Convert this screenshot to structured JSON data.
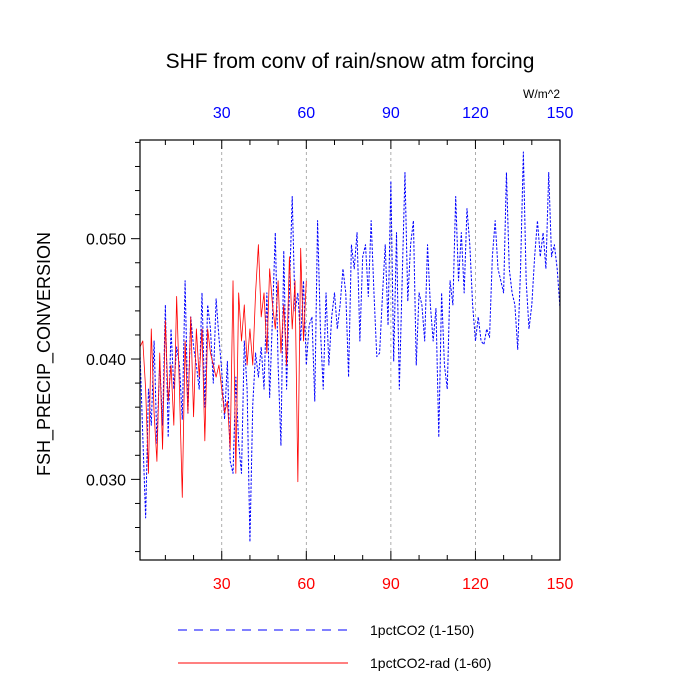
{
  "chart_data": {
    "type": "line",
    "title": "SHF from conv of rain/snow atm forcing",
    "ylabel": "FSH_PRECIP_CONVERSION",
    "units_label": "W/m^2",
    "xlim": [
      1,
      150
    ],
    "ylim": [
      0.0233,
      0.0582
    ],
    "x_ticks": [
      30,
      60,
      90,
      120,
      150
    ],
    "x_tick_labels": [
      "30",
      "60",
      "90",
      "120",
      "150"
    ],
    "y_ticks": [
      0.03,
      0.04,
      0.05
    ],
    "y_tick_labels": [
      "0.030",
      "0.040",
      "0.050"
    ],
    "grid": "vertical dashed at x ticks",
    "legend_placement": "bottom",
    "colors": {
      "series1": "#0000ff",
      "series2": "#ff0000",
      "top_ticks": "#0000ff",
      "bottom_ticks": "#ff0000",
      "grid": "#999999"
    },
    "series": [
      {
        "name": "1pctCO2 (1-150)",
        "color": "#0000ff",
        "dash": "dashed",
        "x_start": 1,
        "values": [
          0.0405,
          0.0335,
          0.0268,
          0.0375,
          0.0345,
          0.0415,
          0.033,
          0.0398,
          0.0345,
          0.0445,
          0.0335,
          0.0425,
          0.0375,
          0.041,
          0.0395,
          0.035,
          0.0465,
          0.0355,
          0.0435,
          0.041,
          0.0395,
          0.0375,
          0.0455,
          0.036,
          0.0445,
          0.0425,
          0.038,
          0.045,
          0.0418,
          0.039,
          0.035,
          0.0398,
          0.0315,
          0.0305,
          0.0385,
          0.033,
          0.0305,
          0.0415,
          0.0375,
          0.0248,
          0.0362,
          0.0405,
          0.0385,
          0.041,
          0.0375,
          0.0455,
          0.0368,
          0.0435,
          0.0505,
          0.0395,
          0.0328,
          0.049,
          0.0375,
          0.0455,
          0.0535,
          0.044,
          0.0455,
          0.0415,
          0.0465,
          0.0395,
          0.0428,
          0.0435,
          0.0365,
          0.0515,
          0.0425,
          0.0375,
          0.0455,
          0.0395,
          0.0435,
          0.0455,
          0.0425,
          0.0445,
          0.0475,
          0.0455,
          0.0385,
          0.0495,
          0.0475,
          0.0505,
          0.0415,
          0.0485,
          0.0495,
          0.0452,
          0.0515,
          0.0455,
          0.0402,
          0.0405,
          0.0452,
          0.0495,
          0.0428,
          0.0548,
          0.0398,
          0.0505,
          0.0375,
          0.0465,
          0.0555,
          0.0448,
          0.0495,
          0.0515,
          0.0395,
          0.0455,
          0.0445,
          0.0415,
          0.0495,
          0.0445,
          0.0415,
          0.0442,
          0.0335,
          0.0455,
          0.0395,
          0.0375,
          0.0465,
          0.0445,
          0.0535,
          0.0465,
          0.0505,
          0.0455,
          0.0525,
          0.0495,
          0.0445,
          0.0415,
          0.0435,
          0.0415,
          0.0412,
          0.0425,
          0.0418,
          0.0485,
          0.0515,
          0.0475,
          0.0465,
          0.0455,
          0.0555,
          0.0475,
          0.0455,
          0.0445,
          0.0408,
          0.0475,
          0.0572,
          0.0465,
          0.0425,
          0.0445,
          0.0485,
          0.0515,
          0.0485,
          0.0505,
          0.0475,
          0.0555,
          0.0485,
          0.0495,
          0.0475,
          0.0442
        ]
      },
      {
        "name": "1pctCO2-rad (1-60)",
        "color": "#ff0000",
        "dash": "solid",
        "x_start": 1,
        "values": [
          0.041,
          0.0415,
          0.0375,
          0.0305,
          0.0425,
          0.0355,
          0.0315,
          0.0405,
          0.0325,
          0.0432,
          0.0365,
          0.0395,
          0.0345,
          0.0452,
          0.0375,
          0.0285,
          0.0415,
          0.0355,
          0.0435,
          0.0352,
          0.0425,
          0.0385,
          0.0425,
          0.0332,
          0.0425,
          0.0405,
          0.0395,
          0.0385,
          0.0395,
          0.0375,
          0.0355,
          0.0365,
          0.0325,
          0.0465,
          0.0305,
          0.0455,
          0.0415,
          0.0445,
          0.0395,
          0.0425,
          0.0395,
          0.0455,
          0.0495,
          0.0435,
          0.0455,
          0.0405,
          0.0475,
          0.0445,
          0.0425,
          0.0465,
          0.0405,
          0.0445,
          0.0395,
          0.0485,
          0.0425,
          0.0465,
          0.0298,
          0.0492,
          0.0415,
          0.0465
        ]
      }
    ]
  }
}
